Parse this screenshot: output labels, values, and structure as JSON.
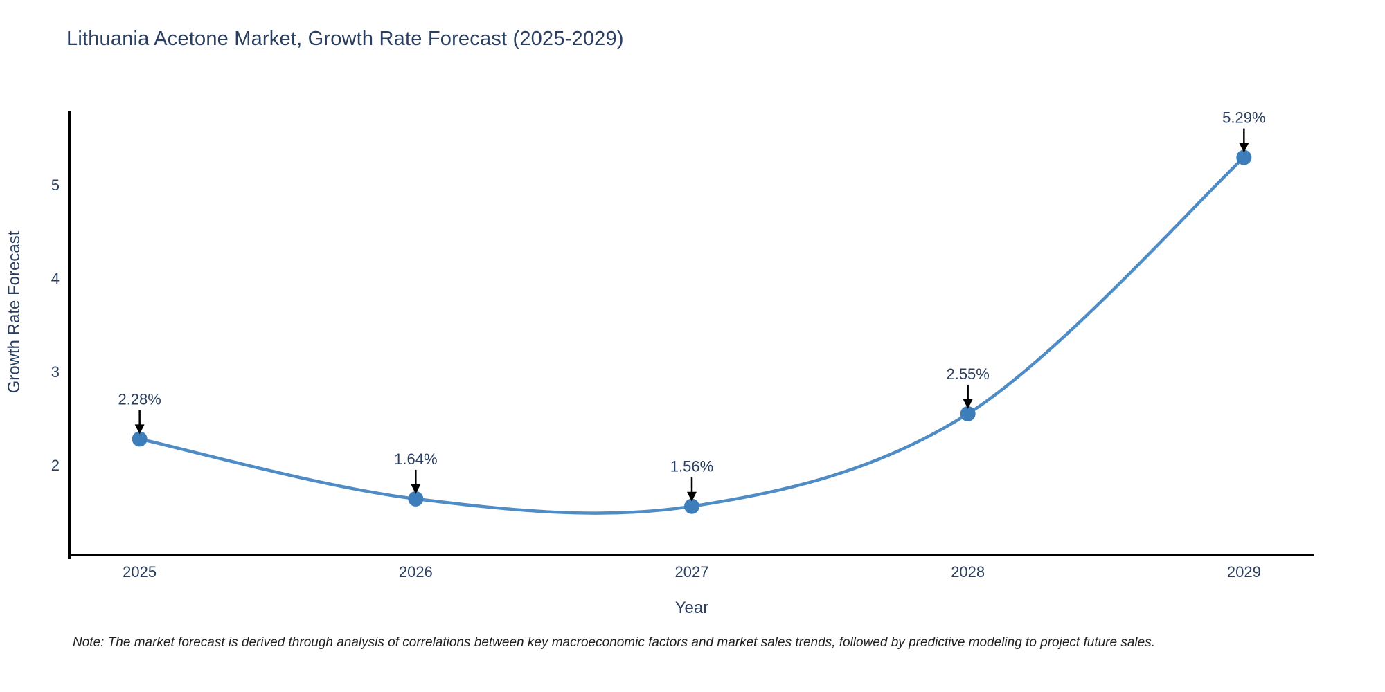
{
  "chart_data": {
    "type": "line",
    "title": "Lithuania Acetone Market, Growth Rate Forecast (2025-2029)",
    "xlabel": "Year",
    "ylabel": "Growth Rate Forecast",
    "x": [
      2025,
      2026,
      2027,
      2028,
      2029
    ],
    "values": [
      2.28,
      1.64,
      1.56,
      2.55,
      5.29
    ],
    "point_labels": [
      "2.28%",
      "1.64%",
      "1.56%",
      "2.55%",
      "5.29%"
    ],
    "yticks": [
      2,
      3,
      4,
      5
    ],
    "xticks": [
      2025,
      2026,
      2027,
      2028,
      2029
    ],
    "xlim": [
      2024.745,
      2029.255
    ],
    "ylim": [
      1.04,
      5.79
    ],
    "line_shape": "spline",
    "grid": false,
    "legend": "none",
    "line_color": "#4f8bc4",
    "marker_color": "#3d7db9",
    "spine_color": "#000000",
    "arrow_color": "#000000",
    "footnote": "Note: The market forecast is derived through analysis of correlations between key macroeconomic factors and market sales trends, followed by predictive modeling to project future sales."
  }
}
